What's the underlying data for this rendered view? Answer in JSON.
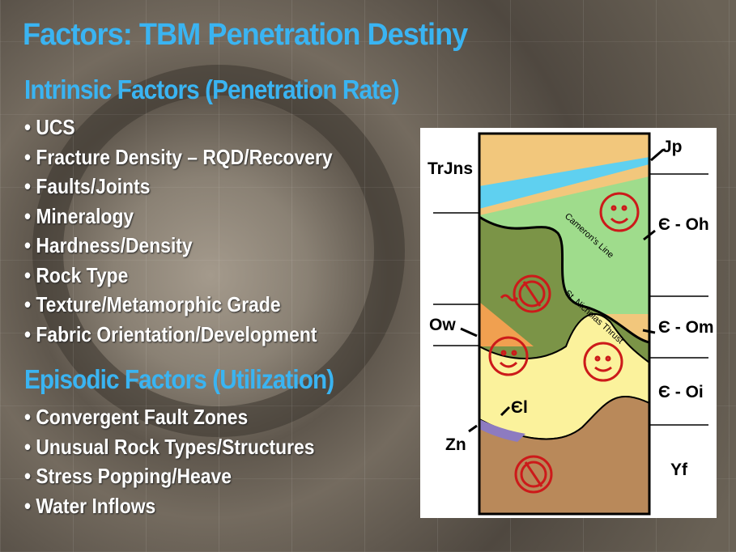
{
  "title": "Factors:  TBM Penetration Destiny",
  "intrinsic": {
    "heading": "Intrinsic Factors (Penetration Rate)",
    "items": [
      "• UCS",
      "• Fracture Density – RQD/Recovery",
      "• Faults/Joints",
      "• Mineralogy",
      "• Hardness/Density",
      "• Rock Type",
      "• Texture/Metamorphic Grade",
      "• Fabric Orientation/Development"
    ]
  },
  "episodic": {
    "heading": "Episodic Factors (Utilization)",
    "items": [
      "• Convergent Fault Zones",
      "• Unusual Rock Types/Structures",
      "• Stress Popping/Heave",
      "• Water Inflows"
    ]
  },
  "diagram": {
    "labels": {
      "trjns": "TrJns",
      "jp": "Jp",
      "coh": "Є - Oh",
      "ow": "Ow",
      "com": "Є - Om",
      "coi": "Є - Oi",
      "cl": "Єl",
      "zn": "Zn",
      "yf": "Yf"
    },
    "structures": {
      "camerons_line": "Cameron's Line",
      "st_nicholas": "St. Nicholas Thrust"
    },
    "colors": {
      "tan": "#f2c77c",
      "blue": "#5fd0f0",
      "light_green": "#9fdc8c",
      "dark_green": "#7b9447",
      "orange": "#f0a050",
      "yellow": "#fbf29c",
      "brown": "#b9895a",
      "purple": "#8d7bc0",
      "marker": "#cc1a1a"
    }
  }
}
